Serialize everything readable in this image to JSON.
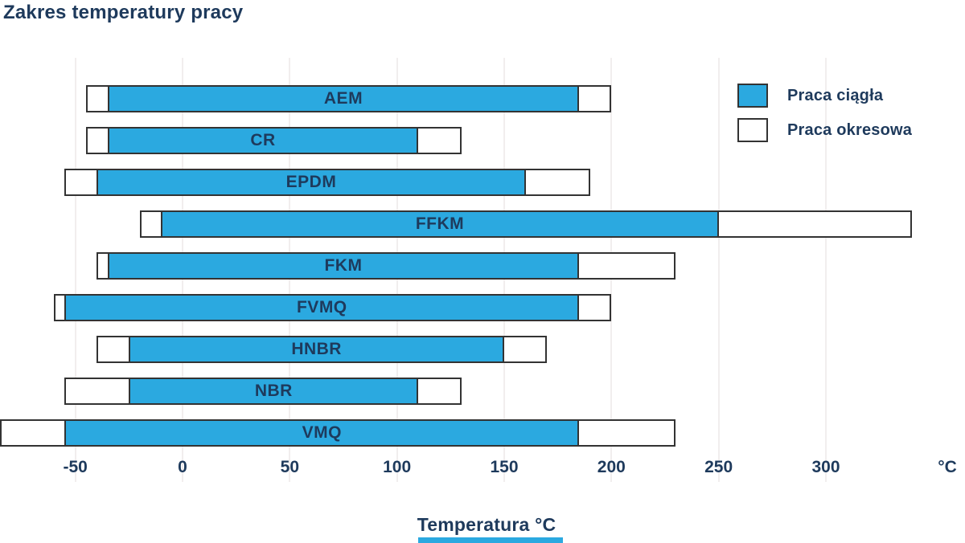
{
  "title": "Zakres temperatury pracy",
  "legend": {
    "continuous": "Praca ciągła",
    "intermittent": "Praca okresowa"
  },
  "axis": {
    "label": "Temperatura °C",
    "unit": "°C"
  },
  "colors": {
    "continuous_fill": "#2BA9E0",
    "intermittent_fill": "#FFFFFF",
    "bar_border": "#333333",
    "text": "#1E3A5C",
    "gridline": "#F1EEEE"
  },
  "chart_data": {
    "type": "bar",
    "orientation": "horizontal-range",
    "title": "Zakres temperatury pracy",
    "xlabel": "Temperatura °C",
    "xticks": [
      -50,
      0,
      50,
      100,
      150,
      200,
      250,
      300
    ],
    "xlim": [
      -85,
      365
    ],
    "grid": "vertical-faint",
    "legend_position": "top-right",
    "categories": [
      "AEM",
      "CR",
      "EPDM",
      "FFKM",
      "FKM",
      "FVMQ",
      "HNBR",
      "NBR",
      "VMQ"
    ],
    "series": [
      {
        "name": "Praca ciągła",
        "ranges_c": [
          [
            -35,
            185
          ],
          [
            -35,
            110
          ],
          [
            -40,
            160
          ],
          [
            -10,
            250
          ],
          [
            -35,
            185
          ],
          [
            -55,
            185
          ],
          [
            -25,
            150
          ],
          [
            -25,
            110
          ],
          [
            -55,
            185
          ]
        ]
      },
      {
        "name": "Praca okresowa",
        "ranges_c": [
          [
            -45,
            200
          ],
          [
            -45,
            130
          ],
          [
            -55,
            190
          ],
          [
            -20,
            340
          ],
          [
            -40,
            230
          ],
          [
            -60,
            200
          ],
          [
            -40,
            170
          ],
          [
            -55,
            130
          ],
          [
            -85,
            230
          ]
        ]
      }
    ]
  }
}
